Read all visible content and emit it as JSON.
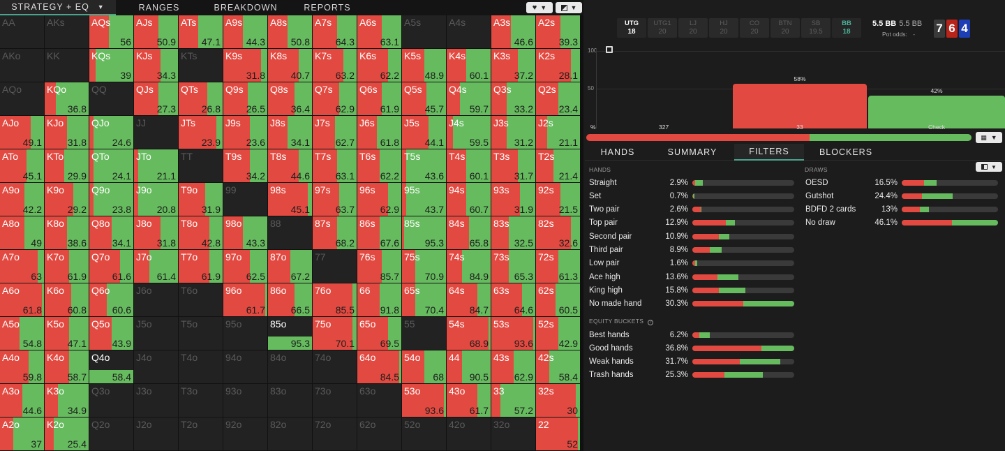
{
  "nav": {
    "tabs": [
      {
        "label": "STRATEGY + EQ",
        "active": true
      },
      {
        "label": "RANGES",
        "active": false
      },
      {
        "label": "BREAKDOWN",
        "active": false
      },
      {
        "label": "REPORTS",
        "active": false
      }
    ],
    "icons": [
      "heart-icon",
      "contrast-icon"
    ]
  },
  "colors": {
    "red": "#e24a41",
    "green": "#66bb5f",
    "accent": "#4aa58e"
  },
  "grid": {
    "rows": [
      [
        [
          "AA",
          null,
          null
        ],
        [
          "AKs",
          null,
          null
        ],
        [
          "AQs",
          0.45,
          "56"
        ],
        [
          "AJs",
          0.55,
          "50.9"
        ],
        [
          "ATs",
          0.45,
          "47.1"
        ],
        [
          "A9s",
          0.45,
          "44.3"
        ],
        [
          "A8s",
          0.45,
          "50.8"
        ],
        [
          "A7s",
          0.55,
          "64.3"
        ],
        [
          "A6s",
          0.55,
          "63.1"
        ],
        [
          "A5s",
          null,
          null
        ],
        [
          "A4s",
          null,
          null
        ],
        [
          "A3s",
          0.45,
          "46.6"
        ],
        [
          "A2s",
          0.55,
          "39.3"
        ]
      ],
      [
        [
          "AKo",
          null,
          null
        ],
        [
          "KK",
          null,
          null
        ],
        [
          "KQs",
          0.15,
          "39"
        ],
        [
          "KJs",
          0.6,
          "34.3"
        ],
        [
          "KTs",
          null,
          null
        ],
        [
          "K9s",
          0.85,
          "31.8"
        ],
        [
          "K8s",
          0.7,
          "40.7"
        ],
        [
          "K7s",
          0.7,
          "63.2"
        ],
        [
          "K6s",
          0.7,
          "62.2"
        ],
        [
          "K5s",
          0.5,
          "48.9"
        ],
        [
          "K4s",
          0.45,
          "60.1"
        ],
        [
          "K3s",
          0.6,
          "37.2"
        ],
        [
          "K2s",
          0.8,
          "28.1"
        ]
      ],
      [
        [
          "AQo",
          null,
          null
        ],
        [
          "KQo",
          0.25,
          "36.8"
        ],
        [
          "QQ",
          null,
          null
        ],
        [
          "QJs",
          0.55,
          "27.3"
        ],
        [
          "QTs",
          0.65,
          "26.8"
        ],
        [
          "Q9s",
          0.55,
          "26.5"
        ],
        [
          "Q8s",
          0.6,
          "36.4"
        ],
        [
          "Q7s",
          0.6,
          "62.9"
        ],
        [
          "Q6s",
          0.55,
          "61.9"
        ],
        [
          "Q5s",
          0.55,
          "45.7"
        ],
        [
          "Q4s",
          0.3,
          "59.7"
        ],
        [
          "Q3s",
          0.35,
          "33.2"
        ],
        [
          "Q2s",
          0.5,
          "23.4"
        ]
      ],
      [
        [
          "AJo",
          0.7,
          "49.1"
        ],
        [
          "KJo",
          0.5,
          "31.8"
        ],
        [
          "QJo",
          0.1,
          "24.6"
        ],
        [
          "JJ",
          null,
          null
        ],
        [
          "JTs",
          0.85,
          "23.9"
        ],
        [
          "J9s",
          0.6,
          "23.6"
        ],
        [
          "J8s",
          0.45,
          "34.1"
        ],
        [
          "J7s",
          0.5,
          "62.7"
        ],
        [
          "J6s",
          0.45,
          "61.8"
        ],
        [
          "J5s",
          0.6,
          "44.1"
        ],
        [
          "J4s",
          0.15,
          "59.5"
        ],
        [
          "J3s",
          0.35,
          "31.2"
        ],
        [
          "J2s",
          0.25,
          "21.1"
        ]
      ],
      [
        [
          "ATo",
          0.6,
          "45.1"
        ],
        [
          "KTo",
          0.45,
          "29.9"
        ],
        [
          "QTo",
          0.1,
          "24.1"
        ],
        [
          "JTo",
          0.1,
          "21.1"
        ],
        [
          "TT",
          null,
          null
        ],
        [
          "T9s",
          0.6,
          "34.2"
        ],
        [
          "T8s",
          0.7,
          "44.6"
        ],
        [
          "T7s",
          0.55,
          "63.1"
        ],
        [
          "T6s",
          0.5,
          "62.2"
        ],
        [
          "T5s",
          0.1,
          "43.6"
        ],
        [
          "T4s",
          0.45,
          "60.1"
        ],
        [
          "T3s",
          0.6,
          "31.7"
        ],
        [
          "T2s",
          0.4,
          "21.4"
        ]
      ],
      [
        [
          "A9o",
          0.55,
          "42.2"
        ],
        [
          "K9o",
          0.65,
          "29.2"
        ],
        [
          "Q9o",
          0.1,
          "23.8"
        ],
        [
          "J9o",
          0.1,
          "20.8"
        ],
        [
          "T9o",
          0.6,
          "31.9"
        ],
        [
          "99",
          null,
          null
        ],
        [
          "98s",
          0.9,
          "45.1"
        ],
        [
          "97s",
          0.6,
          "63.7"
        ],
        [
          "96s",
          0.7,
          "62.9"
        ],
        [
          "95s",
          0.1,
          "43.7"
        ],
        [
          "94s",
          0.45,
          "60.7"
        ],
        [
          "93s",
          0.65,
          "31.9"
        ],
        [
          "92s",
          0.55,
          "21.5"
        ]
      ],
      [
        [
          "A8o",
          0.55,
          "49"
        ],
        [
          "K8o",
          0.5,
          "38.6"
        ],
        [
          "Q8o",
          0.5,
          "34.1"
        ],
        [
          "J8o",
          0.6,
          "31.8"
        ],
        [
          "T8o",
          0.7,
          "42.8"
        ],
        [
          "98o",
          0.45,
          "43.3"
        ],
        [
          "88",
          null,
          null
        ],
        [
          "87s",
          0.55,
          "68.2"
        ],
        [
          "86s",
          0.5,
          "67.6"
        ],
        [
          "85s",
          0.05,
          "95.3"
        ],
        [
          "84s",
          0.5,
          "65.8"
        ],
        [
          "83s",
          0.4,
          "32.5"
        ],
        [
          "82s",
          0.8,
          "32.6"
        ]
      ],
      [
        [
          "A7o",
          0.85,
          "63"
        ],
        [
          "K7o",
          0.55,
          "61.9"
        ],
        [
          "Q7o",
          0.7,
          "61.6"
        ],
        [
          "J7o",
          0.35,
          "61.4"
        ],
        [
          "T7o",
          0.7,
          "61.9"
        ],
        [
          "97o",
          0.6,
          "62.5"
        ],
        [
          "87o",
          0.5,
          "67.2"
        ],
        [
          "77",
          null,
          null
        ],
        [
          "76s",
          0.55,
          "85.7"
        ],
        [
          "75s",
          0.3,
          "70.9"
        ],
        [
          "74s",
          0.35,
          "84.9"
        ],
        [
          "73s",
          0.4,
          "65.3"
        ],
        [
          "72s",
          0.5,
          "61.3"
        ]
      ],
      [
        [
          "A6o",
          0.95,
          "61.8"
        ],
        [
          "K6o",
          0.6,
          "60.8"
        ],
        [
          "Q6o",
          0.4,
          "60.6"
        ],
        [
          "J6o",
          null,
          null
        ],
        [
          "T6o",
          null,
          null
        ],
        [
          "96o",
          0.95,
          "61.7"
        ],
        [
          "86o",
          0.6,
          "66.5"
        ],
        [
          "76o",
          0.9,
          "85.5"
        ],
        [
          "66",
          0.5,
          "91.8"
        ],
        [
          "65s",
          0.3,
          "70.4"
        ],
        [
          "64s",
          0.7,
          "84.7"
        ],
        [
          "63s",
          0.7,
          "64.6"
        ],
        [
          "62s",
          0.45,
          "60.5"
        ]
      ],
      [
        [
          "A5o",
          0.45,
          "54.8"
        ],
        [
          "K5o",
          0.55,
          "47.1"
        ],
        [
          "Q5o",
          0.5,
          "43.9"
        ],
        [
          "J5o",
          null,
          null
        ],
        [
          "T5o",
          null,
          null
        ],
        [
          "95o",
          null,
          null
        ],
        [
          "85o",
          0.0,
          "95.3"
        ],
        [
          "75o",
          0.9,
          "70.1"
        ],
        [
          "65o",
          0.7,
          "69.5"
        ],
        [
          "55",
          null,
          null
        ],
        [
          "54s",
          0.95,
          "68.9"
        ],
        [
          "53s",
          0.95,
          "93.6"
        ],
        [
          "52s",
          0.5,
          "42.9"
        ]
      ],
      [
        [
          "A4o",
          0.65,
          "59.8"
        ],
        [
          "K4o",
          0.55,
          "58.7"
        ],
        [
          "Q4o",
          0.0,
          "58.4"
        ],
        [
          "J4o",
          null,
          null
        ],
        [
          "T4o",
          null,
          null
        ],
        [
          "94o",
          null,
          null
        ],
        [
          "84o",
          null,
          null
        ],
        [
          "74o",
          null,
          null
        ],
        [
          "64o",
          0.95,
          "84.5"
        ],
        [
          "54o",
          0.5,
          "68"
        ],
        [
          "44",
          0.35,
          "90.5"
        ],
        [
          "43s",
          0.5,
          "62.9"
        ],
        [
          "42s",
          0.3,
          "58.4"
        ]
      ],
      [
        [
          "A3o",
          0.5,
          "44.6"
        ],
        [
          "K3o",
          0.3,
          "34.9"
        ],
        [
          "Q3o",
          null,
          null
        ],
        [
          "J3o",
          null,
          null
        ],
        [
          "T3o",
          null,
          null
        ],
        [
          "93o",
          null,
          null
        ],
        [
          "83o",
          null,
          null
        ],
        [
          "73o",
          null,
          null
        ],
        [
          "63o",
          null,
          null
        ],
        [
          "53o",
          0.95,
          "93.6"
        ],
        [
          "43o",
          0.7,
          "61.7"
        ],
        [
          "33",
          0.2,
          "57.2"
        ],
        [
          "32s",
          0.9,
          "30"
        ]
      ],
      [
        [
          "A2o",
          0.3,
          "37"
        ],
        [
          "K2o",
          0.2,
          "25.4"
        ],
        [
          "Q2o",
          null,
          null
        ],
        [
          "J2o",
          null,
          null
        ],
        [
          "T2o",
          null,
          null
        ],
        [
          "92o",
          null,
          null
        ],
        [
          "82o",
          null,
          null
        ],
        [
          "72o",
          null,
          null
        ],
        [
          "62o",
          null,
          null
        ],
        [
          "52o",
          null,
          null
        ],
        [
          "42o",
          null,
          null
        ],
        [
          "32o",
          null,
          null
        ],
        [
          "22",
          0.95,
          "52"
        ]
      ]
    ]
  },
  "positions": [
    {
      "name": "UTG",
      "stack": "18",
      "active": true
    },
    {
      "name": "UTG1",
      "stack": "20",
      "active": false
    },
    {
      "name": "LJ",
      "stack": "20",
      "active": false
    },
    {
      "name": "HJ",
      "stack": "20",
      "active": false
    },
    {
      "name": "CO",
      "stack": "20",
      "active": false
    },
    {
      "name": "BTN",
      "stack": "20",
      "active": false
    },
    {
      "name": "SB",
      "stack": "19.5",
      "active": false
    },
    {
      "name": "BB",
      "stack": "18",
      "active": true
    }
  ],
  "stack": {
    "main": "5.5 BB",
    "alt": "5.5 BB",
    "pot_odds_label": "Pot odds:",
    "pot_odds_value": "-"
  },
  "board": [
    {
      "rank": "7",
      "color": "#3a3a3a"
    },
    {
      "rank": "6",
      "color": "#b8231a"
    },
    {
      "rank": "4",
      "color": "#1c3fb5"
    }
  ],
  "chart_data": {
    "type": "bar",
    "categories": [
      "33",
      "Check"
    ],
    "values": [
      58,
      42
    ],
    "labels": [
      "58%",
      "42%"
    ],
    "colors": [
      "#e24a41",
      "#66bb5f"
    ],
    "ylim": [
      0,
      100
    ],
    "yticks": [
      "100",
      "50"
    ],
    "x_left_label": "%",
    "x_extra_label": "327"
  },
  "overall_freq": {
    "red": 0.58,
    "green": 0.42
  },
  "subtabs": [
    {
      "label": "HANDS",
      "active": false
    },
    {
      "label": "SUMMARY",
      "active": false
    },
    {
      "label": "FILTERS",
      "active": true
    },
    {
      "label": "BLOCKERS",
      "active": false
    }
  ],
  "filters": {
    "hands_heading": "HANDS",
    "hands": [
      {
        "label": "Straight",
        "value": "2.9%",
        "fill": 0.1,
        "red": 0.3
      },
      {
        "label": "Set",
        "value": "0.7%",
        "fill": 0.02,
        "red": 0.5
      },
      {
        "label": "Two pair",
        "value": "2.6%",
        "fill": 0.09,
        "red": 0.9
      },
      {
        "label": "Top pair",
        "value": "12.9%",
        "fill": 0.42,
        "red": 0.78
      },
      {
        "label": "Second pair",
        "value": "10.9%",
        "fill": 0.36,
        "red": 0.72
      },
      {
        "label": "Third pair",
        "value": "8.9%",
        "fill": 0.29,
        "red": 0.58
      },
      {
        "label": "Low pair",
        "value": "1.6%",
        "fill": 0.05,
        "red": 0.6
      },
      {
        "label": "Ace high",
        "value": "13.6%",
        "fill": 0.45,
        "red": 0.55
      },
      {
        "label": "King high",
        "value": "15.8%",
        "fill": 0.52,
        "red": 0.5
      },
      {
        "label": "No made hand",
        "value": "30.3%",
        "fill": 1.0,
        "red": 0.5
      }
    ],
    "equity_heading": "EQUITY BUCKETS",
    "equity": [
      {
        "label": "Best hands",
        "value": "6.2%",
        "fill": 0.17,
        "red": 0.4
      },
      {
        "label": "Good hands",
        "value": "36.8%",
        "fill": 1.0,
        "red": 0.68
      },
      {
        "label": "Weak hands",
        "value": "31.7%",
        "fill": 0.86,
        "red": 0.54
      },
      {
        "label": "Trash hands",
        "value": "25.3%",
        "fill": 0.69,
        "red": 0.46
      }
    ],
    "draws_heading": "DRAWS",
    "draws": [
      {
        "label": "OESD",
        "value": "16.5%",
        "fill": 0.36,
        "red": 0.65
      },
      {
        "label": "Gutshot",
        "value": "24.4%",
        "fill": 0.53,
        "red": 0.4
      },
      {
        "label": "BDFD 2 cards",
        "value": "13%",
        "fill": 0.28,
        "red": 0.68
      },
      {
        "label": "No draw",
        "value": "46.1%",
        "fill": 1.0,
        "red": 0.52
      }
    ]
  }
}
